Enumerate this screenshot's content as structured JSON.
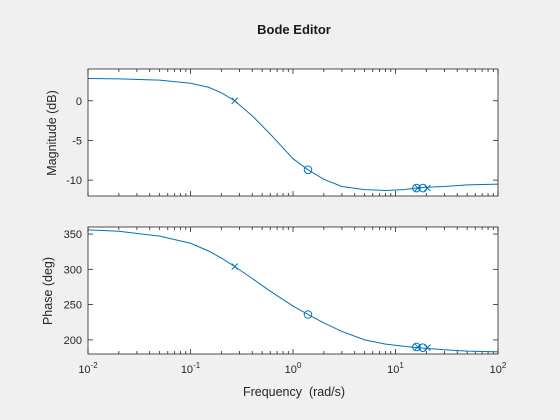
{
  "figure": {
    "title": "Bode Editor",
    "background": "#f0f0f0",
    "axes_background": "#ffffff",
    "line_color": "#0072bd"
  },
  "chart_data": [
    {
      "type": "line",
      "name": "magnitude",
      "xscale": "log",
      "xlim": [
        0.01,
        100
      ],
      "ylim": [
        -12,
        4
      ],
      "ylabel": "Magnitude (dB)",
      "yticks": [
        0,
        -5,
        -10
      ],
      "ytick_labels": [
        "0",
        "-5",
        "-10"
      ],
      "series": [
        {
          "x": [
            0.01,
            0.02,
            0.05,
            0.1,
            0.15,
            0.2,
            0.27,
            0.4,
            0.6,
            1.0,
            1.4,
            2.0,
            3.0,
            5.0,
            8.0,
            12.0,
            16.0,
            20.0,
            30.0,
            50.0,
            100.0
          ],
          "y": [
            2.8,
            2.75,
            2.6,
            2.2,
            1.7,
            1.0,
            0.0,
            -1.9,
            -4.2,
            -7.3,
            -8.7,
            -9.9,
            -10.8,
            -11.2,
            -11.3,
            -11.2,
            -11.0,
            -10.9,
            -10.8,
            -10.6,
            -10.5
          ]
        }
      ],
      "markers": [
        {
          "symbol": "x",
          "x": 0.27,
          "y": 0.0
        },
        {
          "symbol": "o",
          "x": 1.4,
          "y": -8.7
        },
        {
          "symbol": "o",
          "x": 16.0,
          "y": -11.0
        },
        {
          "symbol": "x",
          "x": 16.5,
          "y": -11.0
        },
        {
          "symbol": "o",
          "x": 18.5,
          "y": -11.0
        },
        {
          "symbol": "x",
          "x": 20.5,
          "y": -11.0
        }
      ]
    },
    {
      "type": "line",
      "name": "phase",
      "xscale": "log",
      "xlim": [
        0.01,
        100
      ],
      "ylim": [
        180,
        360
      ],
      "xlabel": "Frequency  (rad/s)",
      "ylabel": "Phase (deg)",
      "yticks": [
        200,
        250,
        300,
        350
      ],
      "ytick_labels": [
        "200",
        "250",
        "300",
        "350"
      ],
      "xticks": [
        0.01,
        0.1,
        1,
        10,
        100
      ],
      "xtick_labels": [
        {
          "base": "10",
          "exp": "-2"
        },
        {
          "base": "10",
          "exp": "-1"
        },
        {
          "base": "10",
          "exp": "0"
        },
        {
          "base": "10",
          "exp": "1"
        },
        {
          "base": "10",
          "exp": "2"
        }
      ],
      "series": [
        {
          "x": [
            0.01,
            0.02,
            0.05,
            0.1,
            0.15,
            0.2,
            0.27,
            0.4,
            0.6,
            1.0,
            1.4,
            2.0,
            3.0,
            5.0,
            8.0,
            12.0,
            16.0,
            20.0,
            30.0,
            50.0,
            100.0
          ],
          "y": [
            356,
            354,
            347,
            337,
            326,
            316,
            304,
            287,
            269,
            248,
            236,
            224,
            212,
            200,
            194,
            191,
            189,
            188,
            186,
            184,
            183
          ]
        }
      ],
      "markers": [
        {
          "symbol": "x",
          "x": 0.27,
          "y": 304
        },
        {
          "symbol": "o",
          "x": 1.4,
          "y": 236
        },
        {
          "symbol": "o",
          "x": 16.0,
          "y": 190
        },
        {
          "symbol": "x",
          "x": 16.5,
          "y": 190
        },
        {
          "symbol": "o",
          "x": 18.5,
          "y": 189
        },
        {
          "symbol": "x",
          "x": 20.5,
          "y": 189
        }
      ]
    }
  ]
}
